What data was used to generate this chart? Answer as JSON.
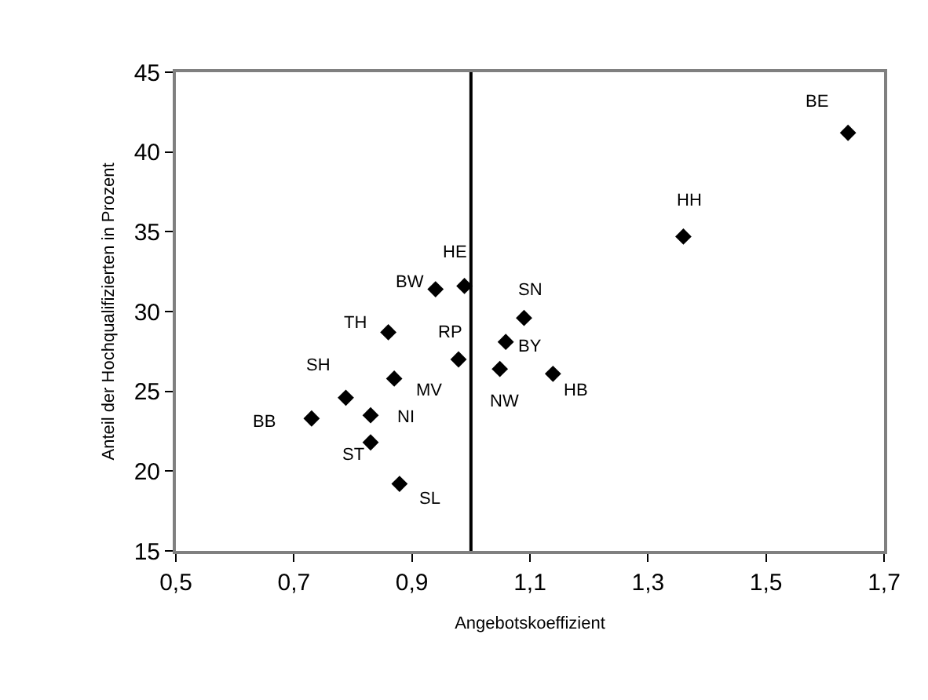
{
  "chart_data": {
    "type": "scatter",
    "xlabel": "Angebotskoeffizient",
    "ylabel": "Anteil der Hochqualifizierten in Prozent",
    "series": [
      {
        "color": "#000000",
        "x": [
          1.639,
          1.36,
          0.989,
          0.94,
          1.09,
          0.86,
          1.059,
          0.979,
          1.049,
          1.139,
          0.87,
          0.788,
          0.83,
          0.73,
          0.83,
          0.879
        ],
        "values": [
          41.2,
          34.7,
          31.6,
          31.4,
          29.6,
          28.7,
          28.1,
          27.0,
          26.4,
          26.1,
          25.8,
          24.6,
          23.5,
          23.3,
          21.8,
          19.2
        ]
      }
    ],
    "annotations": [
      {
        "text": "BE",
        "x": 1.639,
        "y": 41.2
      },
      {
        "text": "HH",
        "x": 1.36,
        "y": 34.7
      },
      {
        "text": "HE",
        "x": 0.989,
        "y": 31.6
      },
      {
        "text": "BW",
        "x": 0.94,
        "y": 31.4
      },
      {
        "text": "SN",
        "x": 1.09,
        "y": 29.6
      },
      {
        "text": "TH",
        "x": 0.86,
        "y": 28.7
      },
      {
        "text": "BY",
        "x": 1.059,
        "y": 28.1
      },
      {
        "text": "RP",
        "x": 0.979,
        "y": 27.0
      },
      {
        "text": "NW",
        "x": 1.049,
        "y": 26.4
      },
      {
        "text": "HB",
        "x": 1.139,
        "y": 26.1
      },
      {
        "text": "MV",
        "x": 0.87,
        "y": 25.8
      },
      {
        "text": "SH",
        "x": 0.788,
        "y": 24.6
      },
      {
        "text": "NI",
        "x": 0.83,
        "y": 23.5
      },
      {
        "text": "BB",
        "x": 0.73,
        "y": 23.3
      },
      {
        "text": "ST",
        "x": 0.83,
        "y": 21.8
      },
      {
        "text": "SL",
        "x": 0.879,
        "y": 19.2
      }
    ],
    "ref_lines": [
      {
        "axis": "x",
        "value": 1.0,
        "color": "#000000"
      }
    ],
    "xlim": [
      0.5,
      1.7
    ],
    "xticks": [
      {
        "value": 0.5,
        "label": "0,5"
      },
      {
        "value": 0.7,
        "label": "0,7"
      },
      {
        "value": 0.9,
        "label": "0,9"
      },
      {
        "value": 1.1,
        "label": "1,1"
      },
      {
        "value": 1.3,
        "label": "1,3"
      },
      {
        "value": 1.5,
        "label": "1,5"
      },
      {
        "value": 1.7,
        "label": "1,7"
      }
    ],
    "ylim": [
      15,
      45
    ],
    "yticks": [
      15,
      20,
      25,
      30,
      35,
      40,
      45
    ],
    "marker": "diamond"
  }
}
